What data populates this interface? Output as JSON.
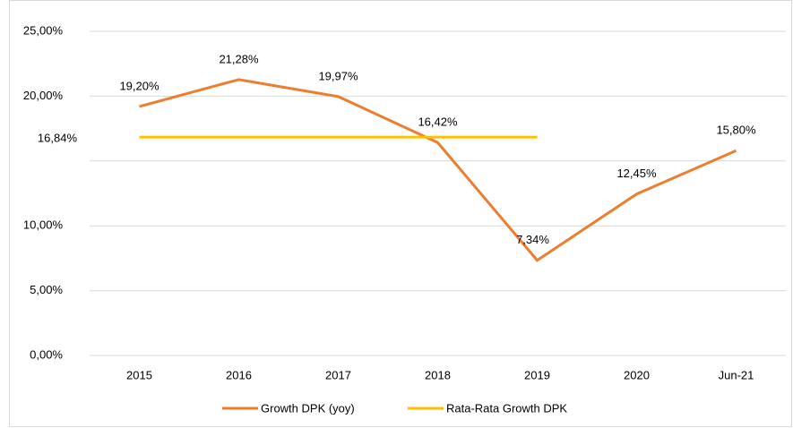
{
  "chart_data": {
    "type": "line",
    "categories": [
      "2015",
      "2016",
      "2017",
      "2018",
      "2019",
      "2020",
      "Jun-21"
    ],
    "series": [
      {
        "name": "Growth DPK (yoy)",
        "color": "#ED7D31",
        "values": [
          19.2,
          21.28,
          19.97,
          16.42,
          7.34,
          12.45,
          15.8
        ],
        "value_labels": [
          "19,20%",
          "21,28%",
          "19,97%",
          "16,42%",
          "7,34%",
          "12,45%",
          "15,80%"
        ]
      },
      {
        "name": "Rata-Rata Growth DPK",
        "color": "#FFC000",
        "values": [
          16.84,
          16.84,
          16.84,
          16.84,
          16.84,
          null,
          null
        ],
        "value_labels": [
          "16,84%",
          null,
          null,
          null,
          null,
          null,
          null
        ]
      }
    ],
    "ylim": [
      0,
      25
    ],
    "yticks": [
      {
        "value": 0,
        "label": "0,00%"
      },
      {
        "value": 5,
        "label": "5,00%"
      },
      {
        "value": 10,
        "label": "10,00%"
      },
      {
        "value": 15,
        "label": null
      },
      {
        "value": 20,
        "label": "20,00%"
      },
      {
        "value": 25,
        "label": "25,00%"
      }
    ],
    "grid": true,
    "legend": "bottom"
  }
}
